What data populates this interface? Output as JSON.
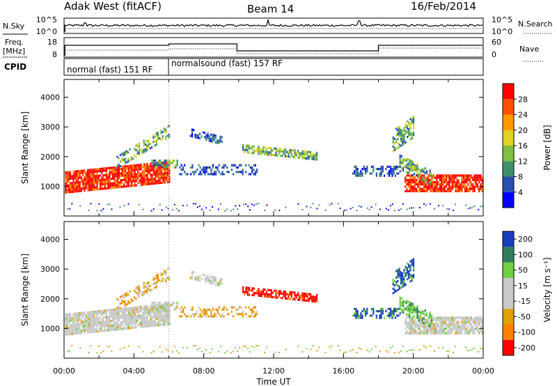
{
  "header": {
    "station": "Adak West (fitACF)",
    "beam": "Beam 14",
    "date": "16/Feb/2014"
  },
  "noise_panel": {
    "left_label": "N.Sky",
    "right_label": "N.Search",
    "left_ticks": [
      "10^5",
      "10^0"
    ],
    "right_ticks": [
      "10^5",
      "10^0"
    ]
  },
  "freq_panel": {
    "left_label": "Freq.",
    "left_unit": "[MHz]",
    "right_label": "Nave",
    "left_ticks": [
      "18",
      "8"
    ],
    "right_ticks": [
      "60",
      "0"
    ]
  },
  "cpid_panel": {
    "label": "CPID",
    "modes": [
      "normal (fast) 151 RF",
      "normalsound (fast) 157 RF"
    ]
  },
  "chart_data": [
    {
      "type": "heatmap",
      "name": "power",
      "ylabel": "Slant Range [km]",
      "y_ticks": [
        "4000",
        "3000",
        "2000",
        "1000"
      ],
      "ylim": [
        0,
        4600
      ],
      "xlim_hours": [
        0,
        24
      ],
      "colorbar_label": "Power [dB]",
      "colorbar_ticks": [
        "28",
        "24",
        "20",
        "16",
        "12",
        "8",
        "4"
      ],
      "colorbar_range": [
        0,
        32
      ],
      "colors": [
        "#0000ff",
        "#2a4fb0",
        "#3f8f6a",
        "#7fbf3f",
        "#e0d020",
        "#ff9a00",
        "#ff5000",
        "#ff0000"
      ]
    },
    {
      "type": "heatmap",
      "name": "velocity",
      "ylabel": "Slant Range [km]",
      "y_ticks": [
        "4000",
        "3000",
        "2000",
        "1000"
      ],
      "ylim": [
        0,
        4600
      ],
      "xlim_hours": [
        0,
        24
      ],
      "xlabel": "Time UT",
      "x_ticks": [
        "00:00",
        "04:00",
        "08:00",
        "12:00",
        "16:00",
        "20:00",
        "00:00"
      ],
      "colorbar_label": "Velocity [m s⁻¹]",
      "colorbar_ticks": [
        "200",
        "100",
        "50",
        "15",
        "-15",
        "-50",
        "-100",
        "-200"
      ],
      "colors": [
        "#ff0000",
        "#ff7f00",
        "#e0a000",
        "#c8c8c8",
        "#c8c8c8",
        "#6fcf3f",
        "#2f7f5f",
        "#1a3fbf"
      ]
    }
  ]
}
